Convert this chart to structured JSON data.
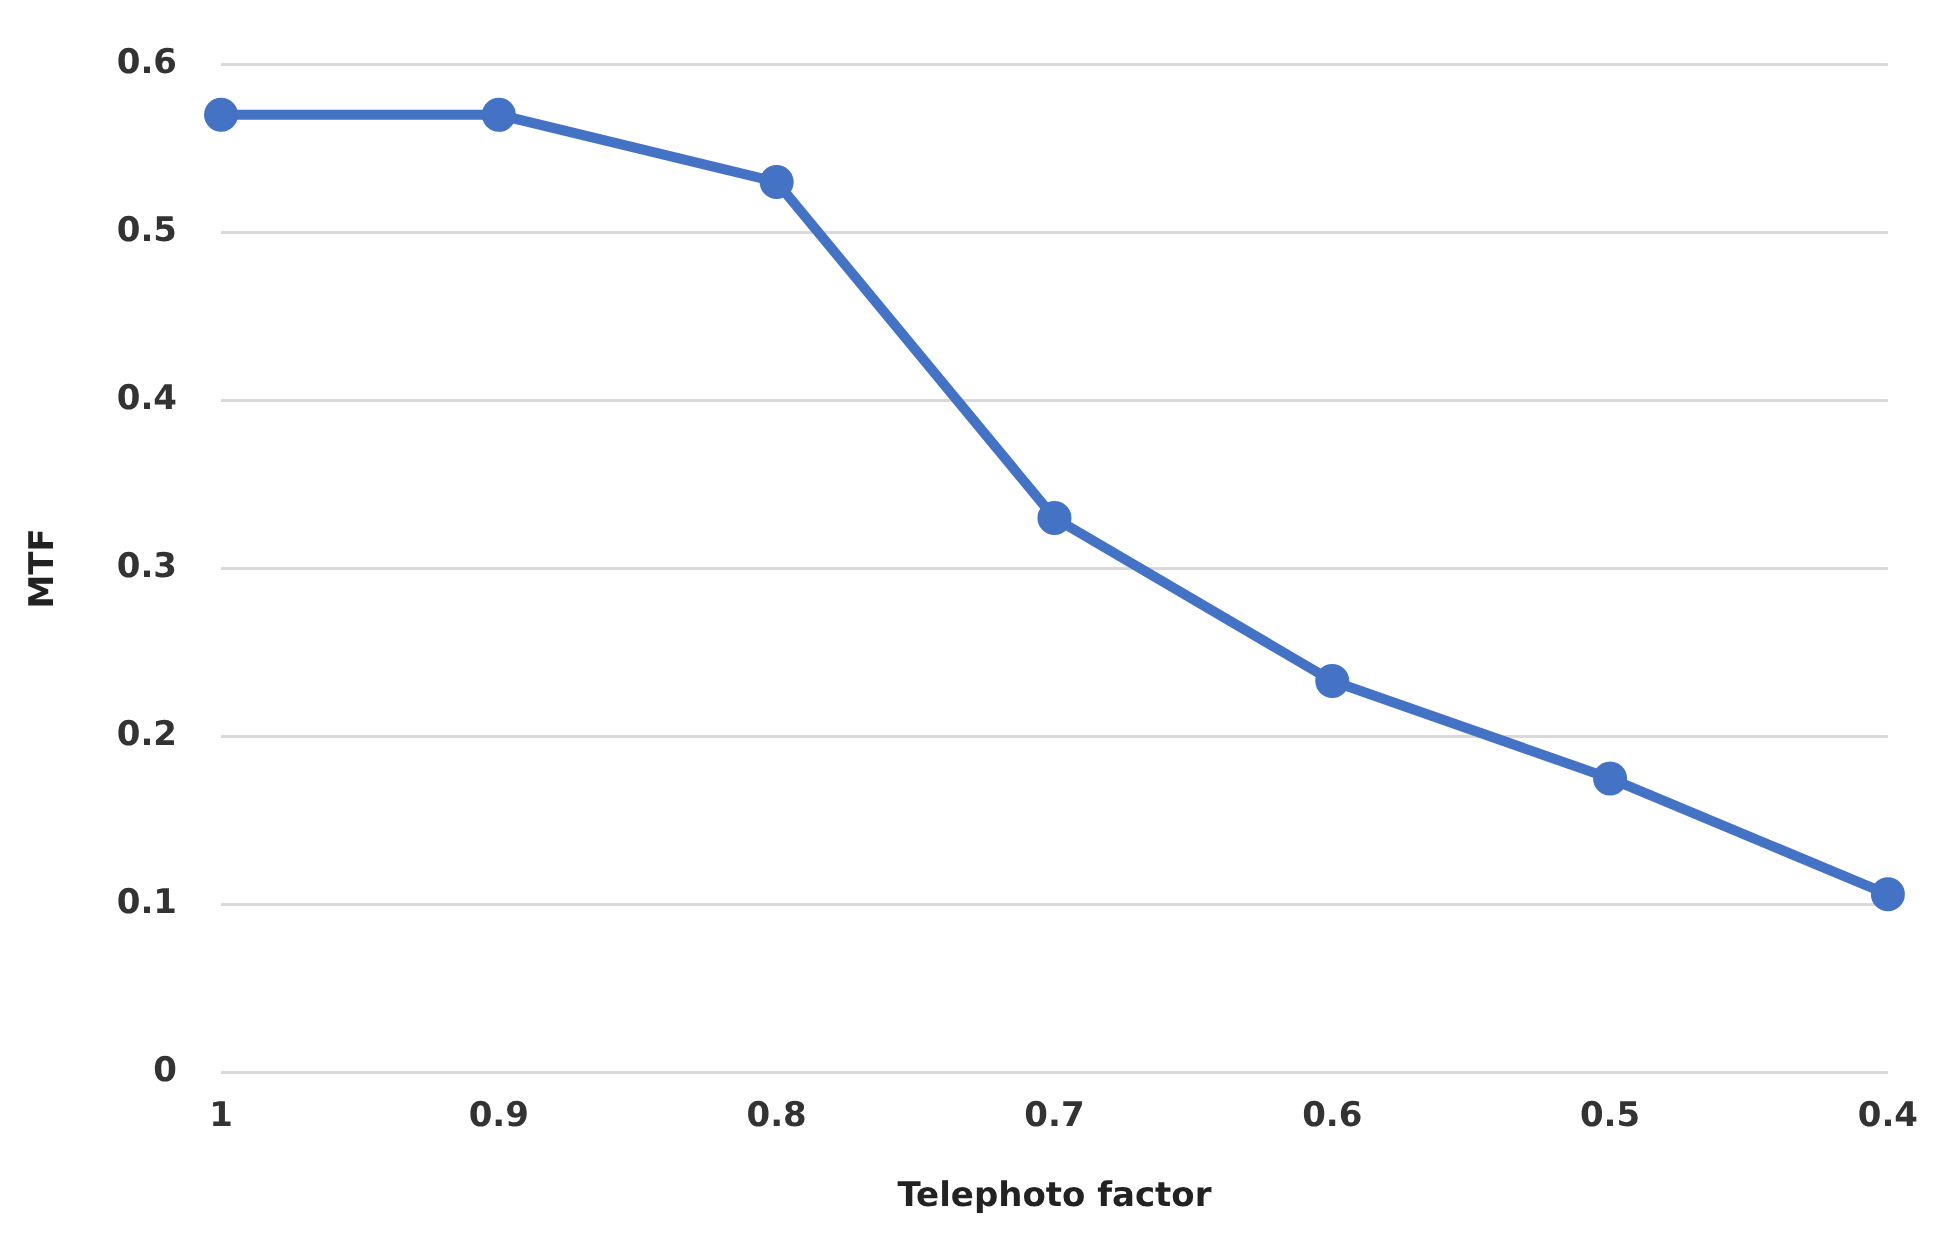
{
  "chart_data": {
    "type": "line",
    "xlabel": "Telephoto factor",
    "ylabel": "MTF",
    "categories": [
      "1",
      "0.9",
      "0.8",
      "0.7",
      "0.6",
      "0.5",
      "0.4"
    ],
    "series": [
      {
        "color": "#4472c4",
        "values": [
          0.57,
          0.57,
          0.53,
          0.33,
          0.233,
          0.175,
          0.106
        ]
      }
    ],
    "ylim": [
      0,
      0.6
    ],
    "yticks": [
      0,
      0.1,
      0.2,
      0.3,
      0.4,
      0.5,
      0.6
    ],
    "grid": "y",
    "marker": "circle",
    "line_style": "solid",
    "legend": false
  }
}
